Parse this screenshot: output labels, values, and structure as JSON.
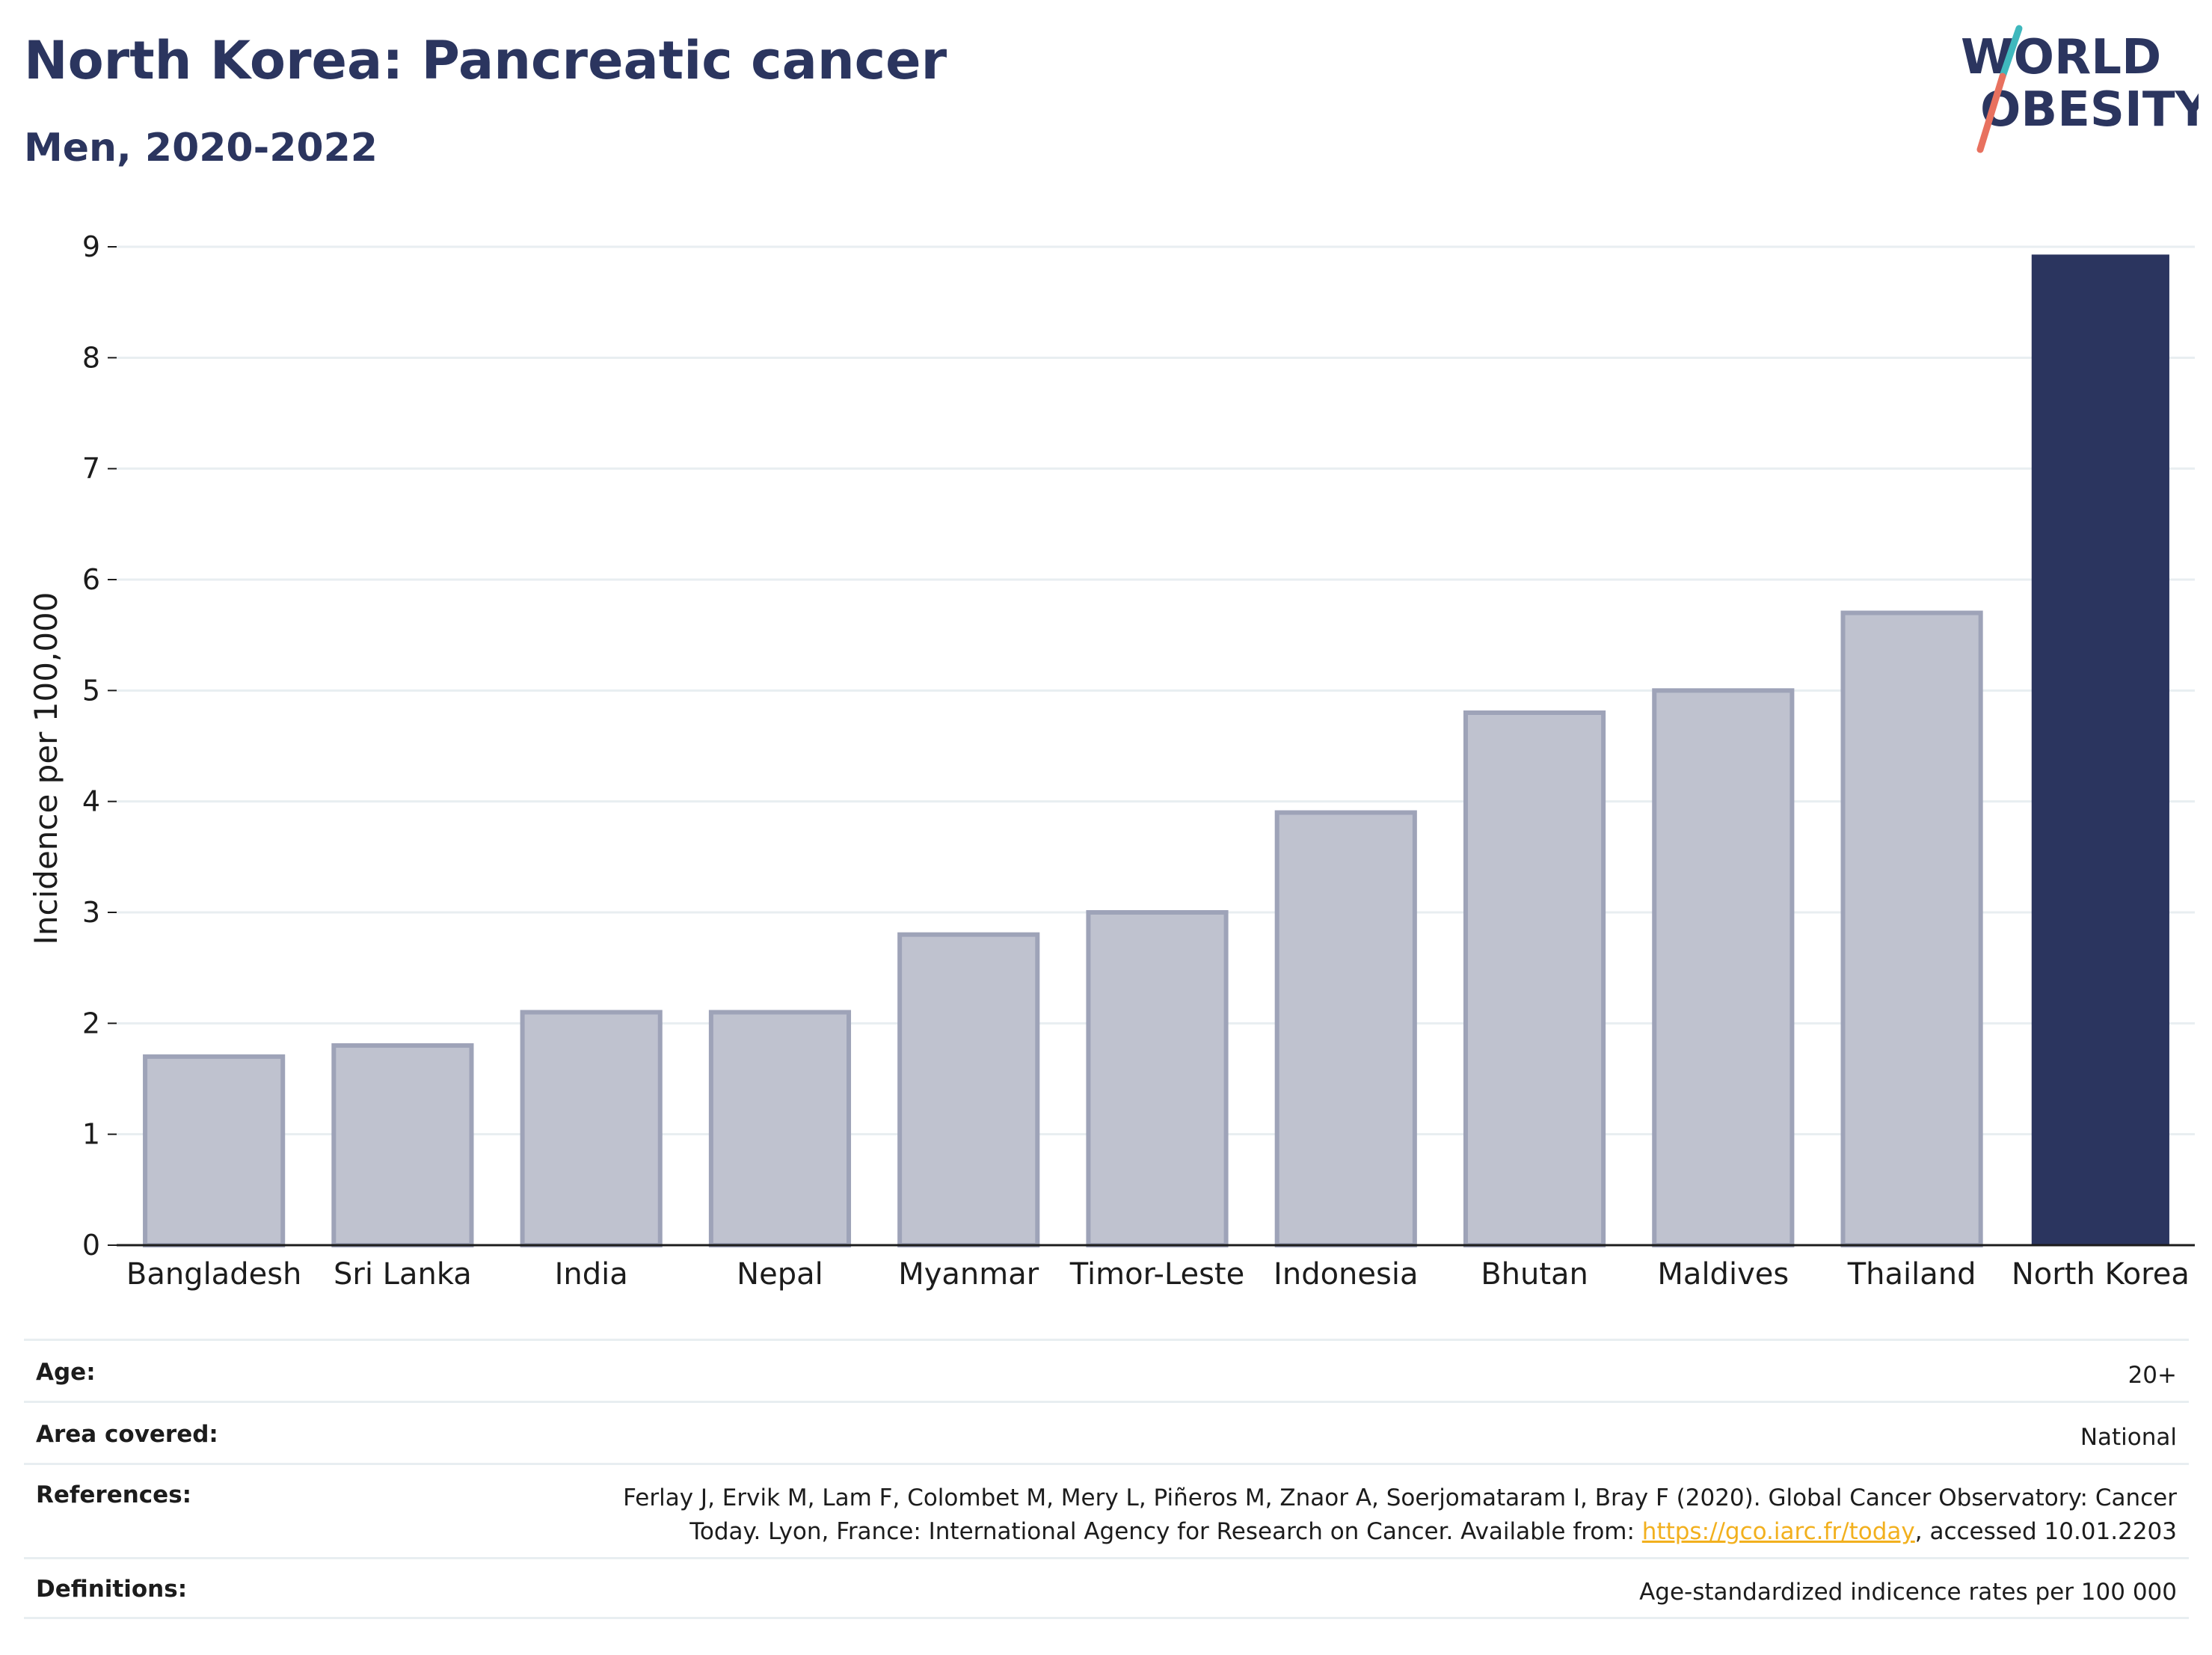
{
  "header": {
    "title": "North Korea: Pancreatic cancer",
    "subtitle": "Men, 2020-2022"
  },
  "logo": {
    "line1": "WORLD",
    "line2": "OBESITY",
    "slash_colors": [
      "#3fb8bd",
      "#e8715f"
    ]
  },
  "colors": {
    "highlight": "#2b355f",
    "comparison_fill": "#bfc2cf",
    "comparison_stroke": "#9ea3b8",
    "grid": "#e8eef1",
    "axis": "#1c1c1c"
  },
  "chart_data": {
    "type": "bar",
    "categories": [
      "Bangladesh",
      "Sri Lanka",
      "India",
      "Nepal",
      "Myanmar",
      "Timor-Leste",
      "Indonesia",
      "Bhutan",
      "Maldives",
      "Thailand",
      "North Korea"
    ],
    "values": [
      1.7,
      1.8,
      2.1,
      2.1,
      2.8,
      3.0,
      3.9,
      4.8,
      5.0,
      5.7,
      8.93
    ],
    "highlight_category": "North Korea",
    "ylabel": "Incidence per 100,000",
    "ylim": [
      0,
      9
    ],
    "yticks": [
      "0",
      "1",
      "2",
      "3",
      "4",
      "5",
      "6",
      "7",
      "8",
      "9"
    ],
    "grid": true
  },
  "meta": {
    "age_label": "Age:",
    "age_value": "20+",
    "area_label": "Area covered:",
    "area_value": "National",
    "references_label": "References:",
    "references_text_1": "Ferlay J, Ervik M, Lam F, Colombet M, Mery L, Piñeros M, Znaor A, Soerjomataram I, Bray F (2020). Global Cancer Observatory: Cancer",
    "references_text_2": "Today. Lyon, France: International Agency for Research on Cancer. Available from: ",
    "references_link": "https://gco.iarc.fr/today",
    "references_text_3": ", accessed 10.01.2203",
    "definitions_label": "Definitions:",
    "definitions_value": "Age-standardized indicence rates per 100 000"
  }
}
